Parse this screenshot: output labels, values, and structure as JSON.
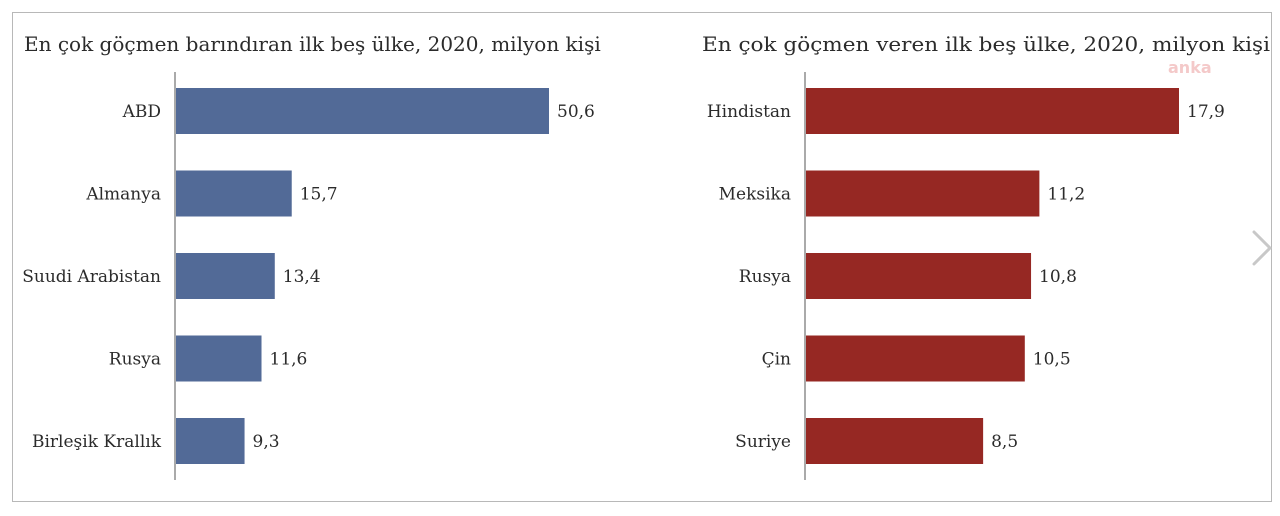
{
  "watermark": "anka",
  "colors": {
    "left_bar": "#526a97",
    "right_bar": "#962823",
    "axis": "#555555",
    "frame": "#b8b8b8",
    "nav": "#c8c8c8"
  },
  "nav": {
    "next_icon": "chevron-right-icon"
  },
  "chart_data": [
    {
      "type": "bar",
      "orientation": "horizontal",
      "title": "En çok göçmen barındıran ilk beş ülke, 2020, milyon kişi",
      "categories": [
        "ABD",
        "Almanya",
        "Suudi Arabistan",
        "Rusya",
        "Birleşik Krallık"
      ],
      "values": [
        50.6,
        15.7,
        13.4,
        11.6,
        9.3
      ],
      "value_labels": [
        "50,6",
        "15,7",
        "13,4",
        "11,6",
        "9,3"
      ],
      "xlim": [
        0,
        50.6
      ],
      "grid": false,
      "color": "#526a97"
    },
    {
      "type": "bar",
      "orientation": "horizontal",
      "title": "En çok göçmen veren ilk beş ülke, 2020, milyon kişi",
      "categories": [
        "Hindistan",
        "Meksika",
        "Rusya",
        "Çin",
        "Suriye"
      ],
      "values": [
        17.9,
        11.2,
        10.8,
        10.5,
        8.5
      ],
      "value_labels": [
        "17,9",
        "11,2",
        "10,8",
        "10,5",
        "8,5"
      ],
      "xlim": [
        0,
        17.9
      ],
      "grid": false,
      "color": "#962823"
    }
  ]
}
